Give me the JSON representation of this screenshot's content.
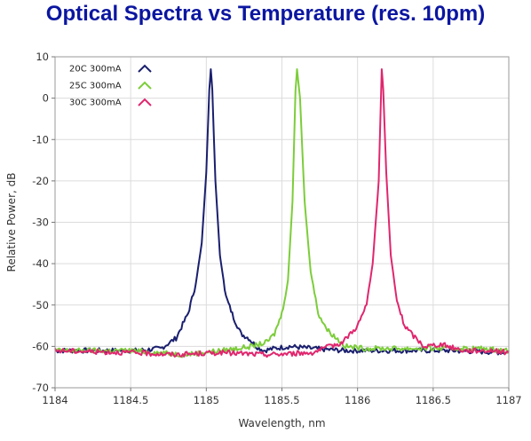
{
  "chart_data": {
    "type": "line",
    "title": "Optical Spectra vs Temperature (res. 10pm)",
    "xlabel": "Wavelength, nm",
    "ylabel": "Relative Power, dB",
    "xlim": [
      1184,
      1187
    ],
    "ylim": [
      -70,
      10
    ],
    "xticks": [
      "1184",
      "1184.5",
      "1185",
      "1185.5",
      "1186",
      "1186.5",
      "1187"
    ],
    "yticks": [
      "10",
      "0",
      "-10",
      "-20",
      "-30",
      "-40",
      "-50",
      "-60",
      "-70"
    ],
    "grid": true,
    "legend_position": "top-left",
    "series": [
      {
        "name": "20C 300mA",
        "color": "#1a1f6e",
        "x": [
          1184.0,
          1184.3,
          1184.55,
          1184.7,
          1184.8,
          1184.88,
          1184.93,
          1184.97,
          1185.0,
          1185.02,
          1185.03,
          1185.04,
          1185.06,
          1185.09,
          1185.13,
          1185.18,
          1185.23,
          1185.28,
          1185.33,
          1185.38,
          1185.45,
          1185.55,
          1185.7,
          1185.9,
          1186.2,
          1186.6,
          1187.0
        ],
        "y": [
          -61,
          -61,
          -61,
          -60.5,
          -58,
          -52,
          -45,
          -35,
          -18,
          2,
          7,
          2,
          -20,
          -38,
          -48,
          -53,
          -57,
          -58,
          -60,
          -61,
          -60.5,
          -60,
          -60.5,
          -61,
          -61,
          -61,
          -61.5
        ]
      },
      {
        "name": "25C 300mA",
        "color": "#7ccd3a",
        "x": [
          1184.0,
          1184.5,
          1184.85,
          1185.1,
          1185.3,
          1185.4,
          1185.45,
          1185.5,
          1185.54,
          1185.57,
          1185.59,
          1185.6,
          1185.62,
          1185.65,
          1185.69,
          1185.74,
          1185.8,
          1185.86,
          1185.92,
          1186.05,
          1186.4,
          1186.8,
          1187.0
        ],
        "y": [
          -61,
          -61,
          -62,
          -61,
          -60,
          -59,
          -57,
          -52,
          -44,
          -25,
          2,
          7,
          0,
          -25,
          -42,
          -52,
          -56,
          -58,
          -60,
          -60.5,
          -60.5,
          -60.5,
          -61
        ]
      },
      {
        "name": "30C 300mA",
        "color": "#e0266e",
        "x": [
          1184.0,
          1184.5,
          1184.8,
          1185.1,
          1185.4,
          1185.7,
          1185.9,
          1186.0,
          1186.06,
          1186.1,
          1186.14,
          1186.16,
          1186.17,
          1186.19,
          1186.22,
          1186.26,
          1186.31,
          1186.37,
          1186.44,
          1186.55,
          1186.7,
          1186.9,
          1187.0
        ],
        "y": [
          -61,
          -61.5,
          -62,
          -61.5,
          -62,
          -61.5,
          -59,
          -55,
          -50,
          -40,
          -20,
          7,
          2,
          -18,
          -38,
          -49,
          -55,
          -57.5,
          -60,
          -59.5,
          -61,
          -61,
          -61.5
        ]
      }
    ]
  }
}
